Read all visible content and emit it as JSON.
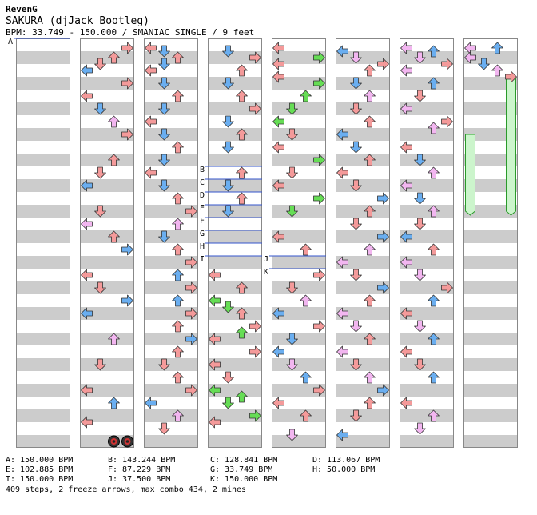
{
  "header": {
    "artist": "RevenG",
    "title": "SAKURA (djJack Bootleg)",
    "info": "BPM: 33.749 - 150.000 / SMANIAC SINGLE / 9 feet"
  },
  "colors": {
    "red": "#f49a9a",
    "blue": "#6aaef0",
    "green": "#66dd55",
    "pink": "#f2b6f0",
    "stripe": "#cccccc",
    "freeze": "#ccf5cc",
    "marker": "#3355cc"
  },
  "markers": [
    {
      "label": "A",
      "col": 0,
      "beat": 0
    },
    {
      "label": "B",
      "col": 3,
      "beat": 10
    },
    {
      "label": "C",
      "col": 3,
      "beat": 11
    },
    {
      "label": "D",
      "col": 3,
      "beat": 12
    },
    {
      "label": "E",
      "col": 3,
      "beat": 13
    },
    {
      "label": "F",
      "col": 3,
      "beat": 14
    },
    {
      "label": "G",
      "col": 3,
      "beat": 15
    },
    {
      "label": "H",
      "col": 3,
      "beat": 16
    },
    {
      "label": "I",
      "col": 3,
      "beat": 17
    },
    {
      "label": "J",
      "col": 4,
      "beat": 17
    },
    {
      "label": "K",
      "col": 4,
      "beat": 18
    }
  ],
  "bpm_changes": [
    "A: 150.000 BPM",
    "B: 143.244 BPM",
    "C: 128.841 BPM",
    "D: 113.067 BPM",
    "E: 102.885 BPM",
    "F: 87.229 BPM",
    "G: 33.749 BPM",
    "H: 50.000 BPM",
    "I: 150.000 BPM",
    "J: 37.500 BPM",
    "K: 150.000 BPM"
  ],
  "summary": "409 steps, 2 freeze arrows, max combo 434, 2 mines",
  "notes": [
    {
      "col": 1,
      "lane": 3,
      "beat": 0.25,
      "c": "red"
    },
    {
      "col": 1,
      "lane": 2,
      "beat": 1,
      "c": "red"
    },
    {
      "col": 1,
      "lane": 1,
      "beat": 1.5,
      "c": "red"
    },
    {
      "col": 1,
      "lane": 0,
      "beat": 2,
      "c": "blue"
    },
    {
      "col": 1,
      "lane": 3,
      "beat": 3,
      "c": "red"
    },
    {
      "col": 1,
      "lane": 0,
      "beat": 4,
      "c": "red"
    },
    {
      "col": 1,
      "lane": 1,
      "beat": 5,
      "c": "blue"
    },
    {
      "col": 1,
      "lane": 2,
      "beat": 6,
      "c": "pink"
    },
    {
      "col": 1,
      "lane": 3,
      "beat": 7,
      "c": "red"
    },
    {
      "col": 1,
      "lane": 2,
      "beat": 9,
      "c": "red"
    },
    {
      "col": 1,
      "lane": 1,
      "beat": 10,
      "c": "red"
    },
    {
      "col": 1,
      "lane": 0,
      "beat": 11,
      "c": "blue"
    },
    {
      "col": 1,
      "lane": 1,
      "beat": 13,
      "c": "red"
    },
    {
      "col": 1,
      "lane": 0,
      "beat": 14,
      "c": "pink"
    },
    {
      "col": 1,
      "lane": 2,
      "beat": 15,
      "c": "red"
    },
    {
      "col": 1,
      "lane": 3,
      "beat": 16,
      "c": "blue"
    },
    {
      "col": 1,
      "lane": 0,
      "beat": 18,
      "c": "red"
    },
    {
      "col": 1,
      "lane": 1,
      "beat": 19,
      "c": "red"
    },
    {
      "col": 1,
      "lane": 3,
      "beat": 20,
      "c": "blue"
    },
    {
      "col": 1,
      "lane": 0,
      "beat": 21,
      "c": "blue"
    },
    {
      "col": 1,
      "lane": 2,
      "beat": 23,
      "c": "pink"
    },
    {
      "col": 1,
      "lane": 1,
      "beat": 25,
      "c": "red"
    },
    {
      "col": 1,
      "lane": 0,
      "beat": 27,
      "c": "red"
    },
    {
      "col": 1,
      "lane": 2,
      "beat": 28,
      "c": "blue"
    },
    {
      "col": 1,
      "lane": 0,
      "beat": 29.5,
      "c": "red"
    },
    {
      "col": 2,
      "lane": 0,
      "beat": 0.25,
      "c": "red"
    },
    {
      "col": 2,
      "lane": 1,
      "beat": 0.5,
      "c": "blue"
    },
    {
      "col": 2,
      "lane": 2,
      "beat": 1,
      "c": "red"
    },
    {
      "col": 2,
      "lane": 1,
      "beat": 1.5,
      "c": "blue"
    },
    {
      "col": 2,
      "lane": 0,
      "beat": 2,
      "c": "red"
    },
    {
      "col": 2,
      "lane": 1,
      "beat": 3,
      "c": "blue"
    },
    {
      "col": 2,
      "lane": 2,
      "beat": 4,
      "c": "red"
    },
    {
      "col": 2,
      "lane": 1,
      "beat": 5,
      "c": "blue"
    },
    {
      "col": 2,
      "lane": 0,
      "beat": 6,
      "c": "red"
    },
    {
      "col": 2,
      "lane": 1,
      "beat": 7,
      "c": "blue"
    },
    {
      "col": 2,
      "lane": 2,
      "beat": 8,
      "c": "red"
    },
    {
      "col": 2,
      "lane": 1,
      "beat": 9,
      "c": "blue"
    },
    {
      "col": 2,
      "lane": 0,
      "beat": 10,
      "c": "red"
    },
    {
      "col": 2,
      "lane": 1,
      "beat": 11,
      "c": "blue"
    },
    {
      "col": 2,
      "lane": 2,
      "beat": 12,
      "c": "red"
    },
    {
      "col": 2,
      "lane": 3,
      "beat": 13,
      "c": "red"
    },
    {
      "col": 2,
      "lane": 2,
      "beat": 14,
      "c": "pink"
    },
    {
      "col": 2,
      "lane": 1,
      "beat": 15,
      "c": "blue"
    },
    {
      "col": 2,
      "lane": 2,
      "beat": 16,
      "c": "red"
    },
    {
      "col": 2,
      "lane": 3,
      "beat": 17,
      "c": "red"
    },
    {
      "col": 2,
      "lane": 2,
      "beat": 18,
      "c": "blue"
    },
    {
      "col": 2,
      "lane": 3,
      "beat": 19,
      "c": "red"
    },
    {
      "col": 2,
      "lane": 2,
      "beat": 20,
      "c": "blue"
    },
    {
      "col": 2,
      "lane": 3,
      "beat": 21,
      "c": "red"
    },
    {
      "col": 2,
      "lane": 2,
      "beat": 22,
      "c": "red"
    },
    {
      "col": 2,
      "lane": 3,
      "beat": 23,
      "c": "blue"
    },
    {
      "col": 2,
      "lane": 2,
      "beat": 24,
      "c": "red"
    },
    {
      "col": 2,
      "lane": 1,
      "beat": 25,
      "c": "red"
    },
    {
      "col": 2,
      "lane": 2,
      "beat": 26,
      "c": "red"
    },
    {
      "col": 2,
      "lane": 3,
      "beat": 27,
      "c": "red"
    },
    {
      "col": 2,
      "lane": 0,
      "beat": 28,
      "c": "blue"
    },
    {
      "col": 2,
      "lane": 2,
      "beat": 29,
      "c": "pink"
    },
    {
      "col": 2,
      "lane": 1,
      "beat": 30,
      "c": "red"
    },
    {
      "col": 3,
      "lane": 1,
      "beat": 0.5,
      "c": "blue"
    },
    {
      "col": 3,
      "lane": 3,
      "beat": 1,
      "c": "red"
    },
    {
      "col": 3,
      "lane": 2,
      "beat": 2,
      "c": "red"
    },
    {
      "col": 3,
      "lane": 1,
      "beat": 3,
      "c": "blue"
    },
    {
      "col": 3,
      "lane": 2,
      "beat": 4,
      "c": "red"
    },
    {
      "col": 3,
      "lane": 3,
      "beat": 5,
      "c": "red"
    },
    {
      "col": 3,
      "lane": 1,
      "beat": 6,
      "c": "blue"
    },
    {
      "col": 3,
      "lane": 2,
      "beat": 7,
      "c": "red"
    },
    {
      "col": 3,
      "lane": 1,
      "beat": 8,
      "c": "blue"
    },
    {
      "col": 3,
      "lane": 2,
      "beat": 10,
      "c": "red"
    },
    {
      "col": 3,
      "lane": 1,
      "beat": 11,
      "c": "blue"
    },
    {
      "col": 3,
      "lane": 2,
      "beat": 12,
      "c": "red"
    },
    {
      "col": 3,
      "lane": 1,
      "beat": 13,
      "c": "blue"
    },
    {
      "col": 3,
      "lane": 0,
      "beat": 18,
      "c": "red"
    },
    {
      "col": 3,
      "lane": 2,
      "beat": 19,
      "c": "red"
    },
    {
      "col": 3,
      "lane": 0,
      "beat": 20,
      "c": "green"
    },
    {
      "col": 3,
      "lane": 1,
      "beat": 20.5,
      "c": "green"
    },
    {
      "col": 3,
      "lane": 2,
      "beat": 21,
      "c": "red"
    },
    {
      "col": 3,
      "lane": 3,
      "beat": 22,
      "c": "red"
    },
    {
      "col": 3,
      "lane": 2,
      "beat": 22.5,
      "c": "green"
    },
    {
      "col": 3,
      "lane": 0,
      "beat": 23,
      "c": "red"
    },
    {
      "col": 3,
      "lane": 3,
      "beat": 24,
      "c": "red"
    },
    {
      "col": 3,
      "lane": 0,
      "beat": 25,
      "c": "red"
    },
    {
      "col": 3,
      "lane": 1,
      "beat": 26,
      "c": "red"
    },
    {
      "col": 3,
      "lane": 0,
      "beat": 27,
      "c": "green"
    },
    {
      "col": 3,
      "lane": 2,
      "beat": 27.5,
      "c": "green"
    },
    {
      "col": 3,
      "lane": 1,
      "beat": 28,
      "c": "green"
    },
    {
      "col": 3,
      "lane": 3,
      "beat": 29,
      "c": "green"
    },
    {
      "col": 3,
      "lane": 0,
      "beat": 29.5,
      "c": "red"
    },
    {
      "col": 4,
      "lane": 0,
      "beat": 0.25,
      "c": "red"
    },
    {
      "col": 4,
      "lane": 3,
      "beat": 1,
      "c": "green"
    },
    {
      "col": 4,
      "lane": 0,
      "beat": 1.5,
      "c": "red"
    },
    {
      "col": 4,
      "lane": 0,
      "beat": 2.5,
      "c": "red"
    },
    {
      "col": 4,
      "lane": 3,
      "beat": 3,
      "c": "green"
    },
    {
      "col": 4,
      "lane": 2,
      "beat": 4,
      "c": "green"
    },
    {
      "col": 4,
      "lane": 1,
      "beat": 5,
      "c": "green"
    },
    {
      "col": 4,
      "lane": 0,
      "beat": 6,
      "c": "green"
    },
    {
      "col": 4,
      "lane": 1,
      "beat": 7,
      "c": "red"
    },
    {
      "col": 4,
      "lane": 0,
      "beat": 8,
      "c": "red"
    },
    {
      "col": 4,
      "lane": 3,
      "beat": 9,
      "c": "green"
    },
    {
      "col": 4,
      "lane": 1,
      "beat": 10,
      "c": "red"
    },
    {
      "col": 4,
      "lane": 0,
      "beat": 11,
      "c": "red"
    },
    {
      "col": 4,
      "lane": 3,
      "beat": 12,
      "c": "green"
    },
    {
      "col": 4,
      "lane": 1,
      "beat": 13,
      "c": "green"
    },
    {
      "col": 4,
      "lane": 0,
      "beat": 15,
      "c": "red"
    },
    {
      "col": 4,
      "lane": 2,
      "beat": 16,
      "c": "red"
    },
    {
      "col": 4,
      "lane": 3,
      "beat": 18,
      "c": "red"
    },
    {
      "col": 4,
      "lane": 1,
      "beat": 19,
      "c": "red"
    },
    {
      "col": 4,
      "lane": 2,
      "beat": 20,
      "c": "pink"
    },
    {
      "col": 4,
      "lane": 0,
      "beat": 21,
      "c": "blue"
    },
    {
      "col": 4,
      "lane": 3,
      "beat": 22,
      "c": "red"
    },
    {
      "col": 4,
      "lane": 1,
      "beat": 23,
      "c": "blue"
    },
    {
      "col": 4,
      "lane": 0,
      "beat": 24,
      "c": "blue"
    },
    {
      "col": 4,
      "lane": 1,
      "beat": 25,
      "c": "pink"
    },
    {
      "col": 4,
      "lane": 2,
      "beat": 26,
      "c": "blue"
    },
    {
      "col": 4,
      "lane": 3,
      "beat": 27,
      "c": "red"
    },
    {
      "col": 4,
      "lane": 0,
      "beat": 28,
      "c": "red"
    },
    {
      "col": 4,
      "lane": 2,
      "beat": 29,
      "c": "red"
    },
    {
      "col": 4,
      "lane": 1,
      "beat": 30.5,
      "c": "pink"
    },
    {
      "col": 5,
      "lane": 0,
      "beat": 0.5,
      "c": "blue"
    },
    {
      "col": 5,
      "lane": 1,
      "beat": 1,
      "c": "pink"
    },
    {
      "col": 5,
      "lane": 3,
      "beat": 1.5,
      "c": "red"
    },
    {
      "col": 5,
      "lane": 2,
      "beat": 2,
      "c": "red"
    },
    {
      "col": 5,
      "lane": 1,
      "beat": 3,
      "c": "blue"
    },
    {
      "col": 5,
      "lane": 2,
      "beat": 4,
      "c": "pink"
    },
    {
      "col": 5,
      "lane": 1,
      "beat": 5,
      "c": "red"
    },
    {
      "col": 5,
      "lane": 2,
      "beat": 6,
      "c": "red"
    },
    {
      "col": 5,
      "lane": 0,
      "beat": 7,
      "c": "blue"
    },
    {
      "col": 5,
      "lane": 1,
      "beat": 8,
      "c": "blue"
    },
    {
      "col": 5,
      "lane": 2,
      "beat": 9,
      "c": "red"
    },
    {
      "col": 5,
      "lane": 0,
      "beat": 10,
      "c": "red"
    },
    {
      "col": 5,
      "lane": 1,
      "beat": 11,
      "c": "red"
    },
    {
      "col": 5,
      "lane": 3,
      "beat": 12,
      "c": "blue"
    },
    {
      "col": 5,
      "lane": 2,
      "beat": 13,
      "c": "red"
    },
    {
      "col": 5,
      "lane": 1,
      "beat": 14,
      "c": "red"
    },
    {
      "col": 5,
      "lane": 3,
      "beat": 15,
      "c": "blue"
    },
    {
      "col": 5,
      "lane": 2,
      "beat": 16,
      "c": "pink"
    },
    {
      "col": 5,
      "lane": 0,
      "beat": 17,
      "c": "pink"
    },
    {
      "col": 5,
      "lane": 1,
      "beat": 18,
      "c": "red"
    },
    {
      "col": 5,
      "lane": 3,
      "beat": 19,
      "c": "blue"
    },
    {
      "col": 5,
      "lane": 2,
      "beat": 20,
      "c": "red"
    },
    {
      "col": 5,
      "lane": 0,
      "beat": 21,
      "c": "pink"
    },
    {
      "col": 5,
      "lane": 1,
      "beat": 22,
      "c": "pink"
    },
    {
      "col": 5,
      "lane": 2,
      "beat": 23,
      "c": "red"
    },
    {
      "col": 5,
      "lane": 0,
      "beat": 24,
      "c": "pink"
    },
    {
      "col": 5,
      "lane": 1,
      "beat": 25,
      "c": "red"
    },
    {
      "col": 5,
      "lane": 2,
      "beat": 26,
      "c": "pink"
    },
    {
      "col": 5,
      "lane": 3,
      "beat": 27,
      "c": "blue"
    },
    {
      "col": 5,
      "lane": 2,
      "beat": 28,
      "c": "red"
    },
    {
      "col": 5,
      "lane": 1,
      "beat": 29,
      "c": "red"
    },
    {
      "col": 5,
      "lane": 0,
      "beat": 30.5,
      "c": "blue"
    },
    {
      "col": 6,
      "lane": 0,
      "beat": 0.25,
      "c": "pink"
    },
    {
      "col": 6,
      "lane": 2,
      "beat": 0.5,
      "c": "blue"
    },
    {
      "col": 6,
      "lane": 1,
      "beat": 1,
      "c": "pink"
    },
    {
      "col": 6,
      "lane": 3,
      "beat": 1.5,
      "c": "red"
    },
    {
      "col": 6,
      "lane": 0,
      "beat": 2,
      "c": "pink"
    },
    {
      "col": 6,
      "lane": 2,
      "beat": 3,
      "c": "blue"
    },
    {
      "col": 6,
      "lane": 1,
      "beat": 4,
      "c": "red"
    },
    {
      "col": 6,
      "lane": 0,
      "beat": 5,
      "c": "pink"
    },
    {
      "col": 6,
      "lane": 3,
      "beat": 6,
      "c": "red"
    },
    {
      "col": 6,
      "lane": 2,
      "beat": 6.5,
      "c": "pink"
    },
    {
      "col": 6,
      "lane": 0,
      "beat": 8,
      "c": "red"
    },
    {
      "col": 6,
      "lane": 1,
      "beat": 9,
      "c": "blue"
    },
    {
      "col": 6,
      "lane": 2,
      "beat": 10,
      "c": "pink"
    },
    {
      "col": 6,
      "lane": 0,
      "beat": 11,
      "c": "pink"
    },
    {
      "col": 6,
      "lane": 1,
      "beat": 12,
      "c": "blue"
    },
    {
      "col": 6,
      "lane": 2,
      "beat": 13,
      "c": "pink"
    },
    {
      "col": 6,
      "lane": 1,
      "beat": 14,
      "c": "red"
    },
    {
      "col": 6,
      "lane": 0,
      "beat": 15,
      "c": "blue"
    },
    {
      "col": 6,
      "lane": 2,
      "beat": 16,
      "c": "red"
    },
    {
      "col": 6,
      "lane": 0,
      "beat": 17,
      "c": "pink"
    },
    {
      "col": 6,
      "lane": 1,
      "beat": 18,
      "c": "pink"
    },
    {
      "col": 6,
      "lane": 3,
      "beat": 19,
      "c": "red"
    },
    {
      "col": 6,
      "lane": 2,
      "beat": 20,
      "c": "blue"
    },
    {
      "col": 6,
      "lane": 0,
      "beat": 21,
      "c": "red"
    },
    {
      "col": 6,
      "lane": 1,
      "beat": 22,
      "c": "pink"
    },
    {
      "col": 6,
      "lane": 2,
      "beat": 23,
      "c": "blue"
    },
    {
      "col": 6,
      "lane": 0,
      "beat": 24,
      "c": "red"
    },
    {
      "col": 6,
      "lane": 1,
      "beat": 25,
      "c": "red"
    },
    {
      "col": 6,
      "lane": 2,
      "beat": 26,
      "c": "blue"
    },
    {
      "col": 6,
      "lane": 0,
      "beat": 28,
      "c": "red"
    },
    {
      "col": 6,
      "lane": 2,
      "beat": 29,
      "c": "pink"
    },
    {
      "col": 6,
      "lane": 1,
      "beat": 30,
      "c": "pink"
    },
    {
      "col": 7,
      "lane": 0,
      "beat": 0.25,
      "c": "pink"
    },
    {
      "col": 7,
      "lane": 2,
      "beat": 0.25,
      "c": "blue"
    },
    {
      "col": 7,
      "lane": 0,
      "beat": 1,
      "c": "pink"
    },
    {
      "col": 7,
      "lane": 1,
      "beat": 1.5,
      "c": "blue"
    },
    {
      "col": 7,
      "lane": 2,
      "beat": 2,
      "c": "pink"
    },
    {
      "col": 7,
      "lane": 3,
      "beat": 2.5,
      "c": "red"
    }
  ],
  "mines": [
    {
      "col": 1,
      "lane": 2,
      "beat": 31
    },
    {
      "col": 1,
      "lane": 3,
      "beat": 31
    }
  ],
  "freezes": [
    {
      "col": 7,
      "lane": 0,
      "start": 7,
      "end": 13
    },
    {
      "col": 7,
      "lane": 3,
      "start": 2.5,
      "end": 13
    }
  ]
}
